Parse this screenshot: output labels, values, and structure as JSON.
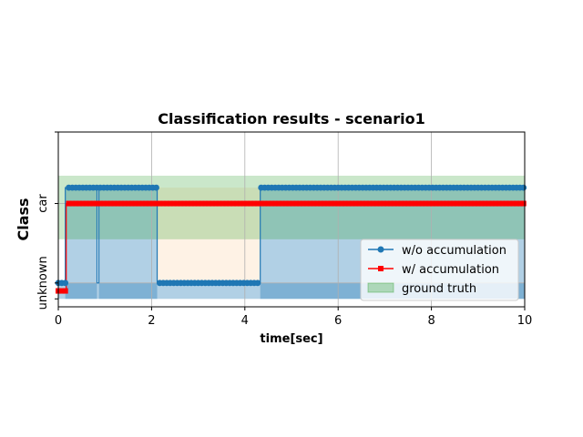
{
  "chart_data": {
    "type": "line",
    "title": "Classification results - scenario1",
    "xlabel": "time[sec]",
    "ylabel": "Class",
    "xlim": [
      0,
      10
    ],
    "ylim": [
      -0.3,
      1.9
    ],
    "x_ticks": [
      0,
      2,
      4,
      6,
      8,
      10
    ],
    "y_ticks": [
      {
        "value": 0,
        "label": "unknown"
      },
      {
        "value": 1,
        "label": "car"
      }
    ],
    "grid": true,
    "legend_position": "lower-right",
    "series": [
      {
        "name": "w/o accumulation",
        "color": "#1f77b4",
        "marker": "circle",
        "style": "steps",
        "plotted_values": {
          "low": 0,
          "high": 1.2
        },
        "segments": [
          {
            "from": 0.0,
            "to": 0.15,
            "level": 0
          },
          {
            "from": 0.15,
            "to": 0.83,
            "level": 1
          },
          {
            "from": 0.83,
            "to": 0.87,
            "level": 0
          },
          {
            "from": 0.87,
            "to": 2.12,
            "level": 1
          },
          {
            "from": 2.12,
            "to": 4.33,
            "level": 0
          },
          {
            "from": 4.33,
            "to": 10.0,
            "level": 1
          }
        ],
        "shaded_fill": {
          "color": "#1f77b4",
          "alpha": 0.35
        },
        "gap_fill": {
          "from": 2.12,
          "to": 4.33,
          "color": "#fdd9b5",
          "alpha": 0.35
        }
      },
      {
        "name": "w/ accumulation",
        "color": "#ff0000",
        "marker": "square",
        "style": "steps",
        "plotted_values": {
          "low": -0.1,
          "high": 1.0
        },
        "segments": [
          {
            "from": 0.0,
            "to": 0.17,
            "level": 0
          },
          {
            "from": 0.17,
            "to": 10.0,
            "level": 1
          }
        ]
      }
    ],
    "ground_truth": {
      "name": "ground truth",
      "color": "#2ca02c",
      "alpha": 0.25,
      "x_range": [
        0,
        10
      ],
      "y_range": [
        0.55,
        1.35
      ]
    }
  }
}
